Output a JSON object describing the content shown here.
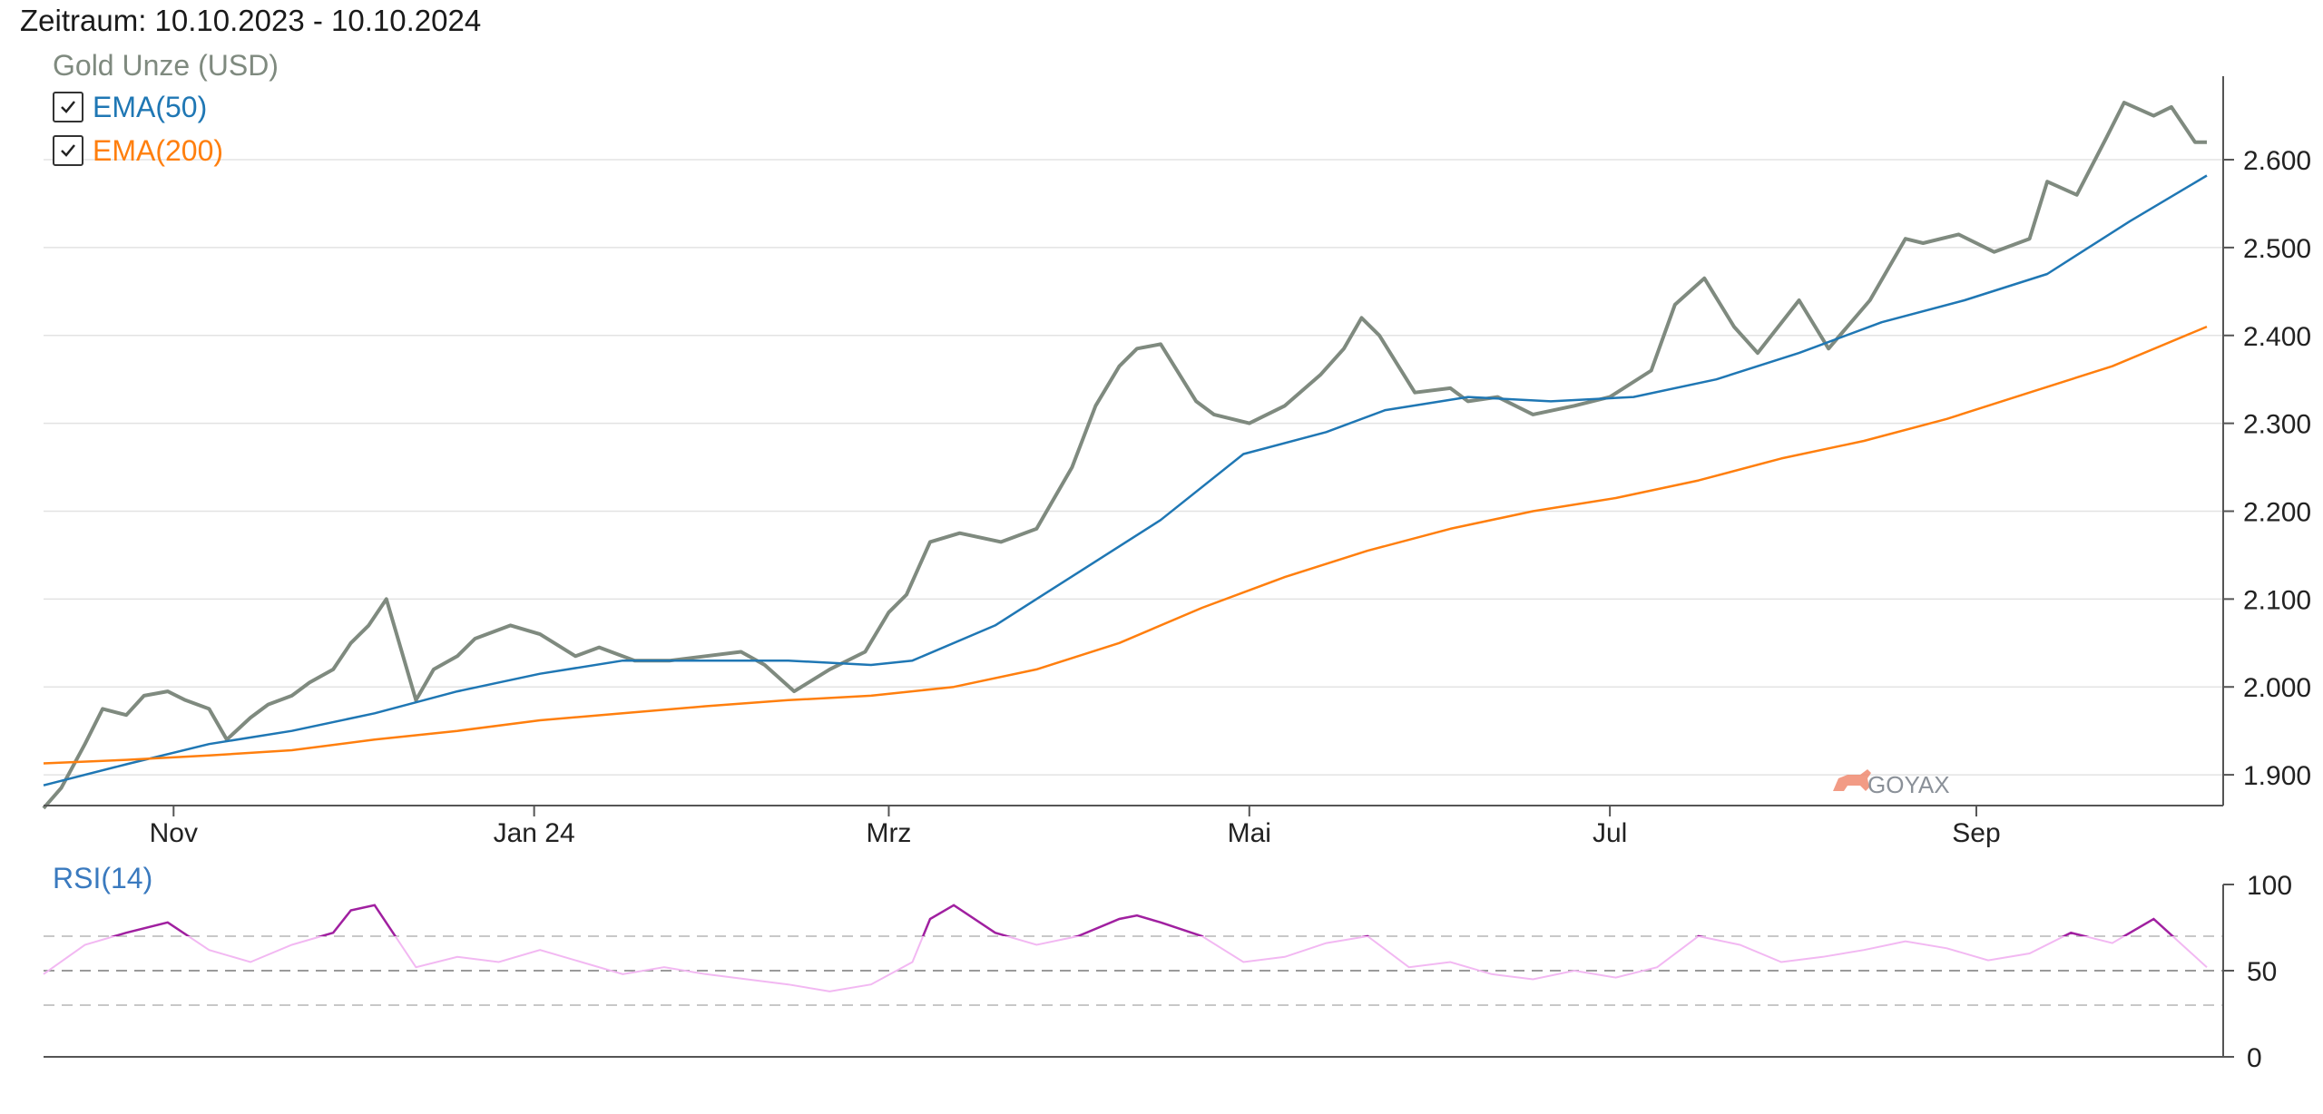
{
  "header": {
    "period": "Zeitraum: 10.10.2023 - 10.10.2024"
  },
  "legend": {
    "series_title": "Gold Unze (USD)",
    "items": [
      {
        "label": "EMA(50)",
        "checked": true,
        "color": "#1f77b4"
      },
      {
        "label": "EMA(200)",
        "checked": true,
        "color": "#ff7f0e"
      }
    ]
  },
  "watermark": "GOYAX",
  "rsi": {
    "label": "RSI(14)"
  },
  "chart_data": [
    {
      "type": "line",
      "title": "",
      "xlabel": "",
      "ylabel": "",
      "x_range": [
        "2023-10-10",
        "2024-10-10"
      ],
      "ylim": [
        1865,
        2695
      ],
      "y_ticks": [
        1900,
        2000,
        2100,
        2200,
        2300,
        2400,
        2500,
        2600
      ],
      "y_tick_labels": [
        "1.900",
        "2.000",
        "2.100",
        "2.200",
        "2.300",
        "2.400",
        "2.500",
        "2.600"
      ],
      "x_ticks": [
        {
          "date": "2023-11-01",
          "label": "Nov"
        },
        {
          "date": "2024-01-01",
          "label": "Jan 24"
        },
        {
          "date": "2024-03-01",
          "label": "Mrz"
        },
        {
          "date": "2024-05-01",
          "label": "Mai"
        },
        {
          "date": "2024-07-01",
          "label": "Jul"
        },
        {
          "date": "2024-09-01",
          "label": "Sep"
        }
      ],
      "grid": true,
      "legend_position": "top-left",
      "series": [
        {
          "name": "Gold Unze (USD)",
          "color": "#7f8a7f",
          "x": [
            "2023-10-10",
            "2023-10-13",
            "2023-10-17",
            "2023-10-20",
            "2023-10-24",
            "2023-10-27",
            "2023-10-31",
            "2023-11-03",
            "2023-11-07",
            "2023-11-10",
            "2023-11-14",
            "2023-11-17",
            "2023-11-21",
            "2023-11-24",
            "2023-11-28",
            "2023-12-01",
            "2023-12-04",
            "2023-12-07",
            "2023-12-12",
            "2023-12-15",
            "2023-12-19",
            "2023-12-22",
            "2023-12-28",
            "2024-01-02",
            "2024-01-08",
            "2024-01-12",
            "2024-01-18",
            "2024-01-24",
            "2024-01-30",
            "2024-02-05",
            "2024-02-09",
            "2024-02-14",
            "2024-02-20",
            "2024-02-26",
            "2024-03-01",
            "2024-03-04",
            "2024-03-08",
            "2024-03-13",
            "2024-03-20",
            "2024-03-26",
            "2024-04-01",
            "2024-04-05",
            "2024-04-09",
            "2024-04-12",
            "2024-04-16",
            "2024-04-22",
            "2024-04-25",
            "2024-05-01",
            "2024-05-07",
            "2024-05-13",
            "2024-05-17",
            "2024-05-20",
            "2024-05-23",
            "2024-05-29",
            "2024-06-04",
            "2024-06-07",
            "2024-06-12",
            "2024-06-18",
            "2024-06-25",
            "2024-07-01",
            "2024-07-08",
            "2024-07-12",
            "2024-07-17",
            "2024-07-22",
            "2024-07-26",
            "2024-08-02",
            "2024-08-07",
            "2024-08-14",
            "2024-08-20",
            "2024-08-23",
            "2024-08-29",
            "2024-09-04",
            "2024-09-10",
            "2024-09-13",
            "2024-09-18",
            "2024-09-23",
            "2024-09-26",
            "2024-10-01",
            "2024-10-04",
            "2024-10-08",
            "2024-10-10"
          ],
          "y": [
            1862,
            1885,
            1935,
            1975,
            1968,
            1990,
            1995,
            1985,
            1975,
            1940,
            1965,
            1980,
            1990,
            2005,
            2020,
            2050,
            2070,
            2100,
            1985,
            2020,
            2035,
            2055,
            2070,
            2060,
            2035,
            2045,
            2030,
            2030,
            2035,
            2040,
            2025,
            1995,
            2020,
            2040,
            2085,
            2105,
            2165,
            2175,
            2165,
            2180,
            2250,
            2320,
            2365,
            2385,
            2390,
            2325,
            2310,
            2300,
            2320,
            2355,
            2385,
            2420,
            2400,
            2335,
            2340,
            2325,
            2330,
            2310,
            2320,
            2330,
            2360,
            2435,
            2465,
            2410,
            2380,
            2440,
            2385,
            2440,
            2510,
            2505,
            2515,
            2495,
            2510,
            2575,
            2560,
            2625,
            2665,
            2650,
            2660,
            2620,
            2620
          ]
        },
        {
          "name": "EMA(50)",
          "color": "#1f77b4",
          "x": [
            "2023-10-10",
            "2023-10-24",
            "2023-11-07",
            "2023-11-21",
            "2023-12-05",
            "2023-12-19",
            "2024-01-02",
            "2024-01-16",
            "2024-01-30",
            "2024-02-13",
            "2024-02-27",
            "2024-03-05",
            "2024-03-19",
            "2024-04-02",
            "2024-04-16",
            "2024-04-30",
            "2024-05-14",
            "2024-05-24",
            "2024-06-07",
            "2024-06-21",
            "2024-07-05",
            "2024-07-19",
            "2024-08-02",
            "2024-08-16",
            "2024-08-30",
            "2024-09-13",
            "2024-09-27",
            "2024-10-10"
          ],
          "y": [
            1888,
            1912,
            1935,
            1950,
            1970,
            1995,
            2015,
            2030,
            2030,
            2030,
            2025,
            2030,
            2070,
            2130,
            2190,
            2265,
            2290,
            2315,
            2330,
            2325,
            2330,
            2350,
            2380,
            2415,
            2440,
            2470,
            2530,
            2582
          ]
        },
        {
          "name": "EMA(200)",
          "color": "#ff7f0e",
          "x": [
            "2023-10-10",
            "2023-10-24",
            "2023-11-07",
            "2023-11-21",
            "2023-12-05",
            "2023-12-19",
            "2024-01-02",
            "2024-01-16",
            "2024-01-30",
            "2024-02-13",
            "2024-02-27",
            "2024-03-12",
            "2024-03-26",
            "2024-04-09",
            "2024-04-23",
            "2024-05-07",
            "2024-05-21",
            "2024-06-04",
            "2024-06-18",
            "2024-07-02",
            "2024-07-16",
            "2024-07-30",
            "2024-08-13",
            "2024-08-27",
            "2024-09-10",
            "2024-09-24",
            "2024-10-10"
          ],
          "y": [
            1913,
            1917,
            1922,
            1928,
            1940,
            1950,
            1962,
            1970,
            1978,
            1985,
            1990,
            2000,
            2020,
            2050,
            2090,
            2125,
            2155,
            2180,
            2200,
            2215,
            2235,
            2260,
            2280,
            2305,
            2335,
            2365,
            2410
          ]
        }
      ]
    },
    {
      "type": "line",
      "title": "RSI(14)",
      "ylim": [
        0,
        100
      ],
      "y_ticks": [
        0,
        50,
        100
      ],
      "reference_lines": [
        30,
        50,
        70
      ],
      "series": [
        {
          "name": "RSI(14)",
          "color": "#f2b8f2",
          "overbought_color": "#a020a0",
          "x": [
            "2023-10-10",
            "2023-10-17",
            "2023-10-24",
            "2023-10-31",
            "2023-11-07",
            "2023-11-14",
            "2023-11-21",
            "2023-11-28",
            "2023-12-01",
            "2023-12-05",
            "2023-12-12",
            "2023-12-19",
            "2023-12-26",
            "2024-01-02",
            "2024-01-09",
            "2024-01-16",
            "2024-01-23",
            "2024-01-30",
            "2024-02-06",
            "2024-02-13",
            "2024-02-20",
            "2024-02-27",
            "2024-03-05",
            "2024-03-08",
            "2024-03-12",
            "2024-03-19",
            "2024-03-26",
            "2024-04-02",
            "2024-04-09",
            "2024-04-12",
            "2024-04-16",
            "2024-04-23",
            "2024-04-30",
            "2024-05-07",
            "2024-05-14",
            "2024-05-21",
            "2024-05-28",
            "2024-06-04",
            "2024-06-11",
            "2024-06-18",
            "2024-06-25",
            "2024-07-02",
            "2024-07-09",
            "2024-07-16",
            "2024-07-23",
            "2024-07-30",
            "2024-08-06",
            "2024-08-13",
            "2024-08-20",
            "2024-08-27",
            "2024-09-03",
            "2024-09-10",
            "2024-09-17",
            "2024-09-24",
            "2024-10-01",
            "2024-10-10"
          ],
          "y": [
            48,
            65,
            72,
            78,
            62,
            55,
            65,
            72,
            85,
            88,
            52,
            58,
            55,
            62,
            55,
            48,
            52,
            48,
            45,
            42,
            38,
            42,
            55,
            80,
            88,
            72,
            65,
            70,
            80,
            82,
            78,
            70,
            55,
            58,
            66,
            70,
            52,
            55,
            48,
            45,
            50,
            46,
            52,
            70,
            65,
            55,
            58,
            62,
            67,
            63,
            56,
            60,
            72,
            66,
            80,
            52
          ]
        }
      ]
    }
  ]
}
